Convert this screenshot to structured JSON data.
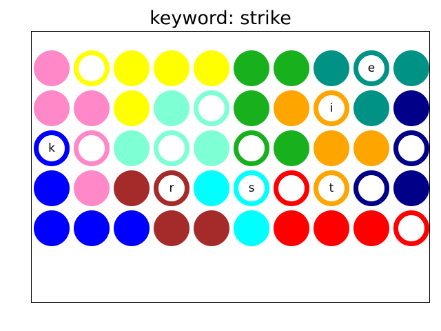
{
  "title": "keyword: strike",
  "colors": {
    "pink": "#ff88c8",
    "yellow": "#ffff00",
    "green": "#19b01e",
    "teal": "#009385",
    "aquamarine": "#7fffd4",
    "orange": "#ffa500",
    "navy": "#000088",
    "blue": "#0000ff",
    "brown": "#a52a2a",
    "cyan": "#00ffff",
    "red": "#ff0000"
  },
  "grid": {
    "rows": 5,
    "cols": 10,
    "cells": [
      [
        {
          "color": "pink",
          "style": "solid",
          "letter": ""
        },
        {
          "color": "yellow",
          "style": "ring",
          "letter": ""
        },
        {
          "color": "yellow",
          "style": "solid",
          "letter": ""
        },
        {
          "color": "yellow",
          "style": "solid",
          "letter": ""
        },
        {
          "color": "yellow",
          "style": "solid",
          "letter": ""
        },
        {
          "color": "green",
          "style": "solid",
          "letter": ""
        },
        {
          "color": "green",
          "style": "solid",
          "letter": ""
        },
        {
          "color": "teal",
          "style": "solid",
          "letter": ""
        },
        {
          "color": "teal",
          "style": "ring",
          "letter": "e"
        },
        {
          "color": "teal",
          "style": "solid",
          "letter": ""
        }
      ],
      [
        {
          "color": "pink",
          "style": "solid",
          "letter": ""
        },
        {
          "color": "pink",
          "style": "solid",
          "letter": ""
        },
        {
          "color": "yellow",
          "style": "solid",
          "letter": ""
        },
        {
          "color": "aquamarine",
          "style": "solid",
          "letter": ""
        },
        {
          "color": "aquamarine",
          "style": "ring",
          "letter": ""
        },
        {
          "color": "green",
          "style": "solid",
          "letter": ""
        },
        {
          "color": "orange",
          "style": "solid",
          "letter": ""
        },
        {
          "color": "orange",
          "style": "ring",
          "letter": "i"
        },
        {
          "color": "teal",
          "style": "solid",
          "letter": ""
        },
        {
          "color": "navy",
          "style": "solid",
          "letter": ""
        }
      ],
      [
        {
          "color": "blue",
          "style": "ring",
          "letter": "k"
        },
        {
          "color": "pink",
          "style": "ring",
          "letter": ""
        },
        {
          "color": "aquamarine",
          "style": "solid",
          "letter": ""
        },
        {
          "color": "aquamarine",
          "style": "ring",
          "letter": ""
        },
        {
          "color": "aquamarine",
          "style": "solid",
          "letter": ""
        },
        {
          "color": "green",
          "style": "ring",
          "letter": ""
        },
        {
          "color": "green",
          "style": "solid",
          "letter": ""
        },
        {
          "color": "orange",
          "style": "solid",
          "letter": ""
        },
        {
          "color": "orange",
          "style": "solid",
          "letter": ""
        },
        {
          "color": "navy",
          "style": "ring",
          "letter": ""
        }
      ],
      [
        {
          "color": "blue",
          "style": "solid",
          "letter": ""
        },
        {
          "color": "pink",
          "style": "solid",
          "letter": ""
        },
        {
          "color": "brown",
          "style": "solid",
          "letter": ""
        },
        {
          "color": "brown",
          "style": "ring",
          "letter": "r"
        },
        {
          "color": "cyan",
          "style": "solid",
          "letter": ""
        },
        {
          "color": "cyan",
          "style": "ring",
          "letter": "s"
        },
        {
          "color": "red",
          "style": "ring",
          "letter": ""
        },
        {
          "color": "orange",
          "style": "ring",
          "letter": "t"
        },
        {
          "color": "navy",
          "style": "ring",
          "letter": ""
        },
        {
          "color": "navy",
          "style": "solid",
          "letter": ""
        }
      ],
      [
        {
          "color": "blue",
          "style": "solid",
          "letter": ""
        },
        {
          "color": "blue",
          "style": "solid",
          "letter": ""
        },
        {
          "color": "blue",
          "style": "solid",
          "letter": ""
        },
        {
          "color": "brown",
          "style": "solid",
          "letter": ""
        },
        {
          "color": "brown",
          "style": "solid",
          "letter": ""
        },
        {
          "color": "cyan",
          "style": "solid",
          "letter": ""
        },
        {
          "color": "red",
          "style": "solid",
          "letter": ""
        },
        {
          "color": "red",
          "style": "solid",
          "letter": ""
        },
        {
          "color": "red",
          "style": "solid",
          "letter": ""
        },
        {
          "color": "red",
          "style": "ring",
          "letter": ""
        }
      ]
    ]
  }
}
